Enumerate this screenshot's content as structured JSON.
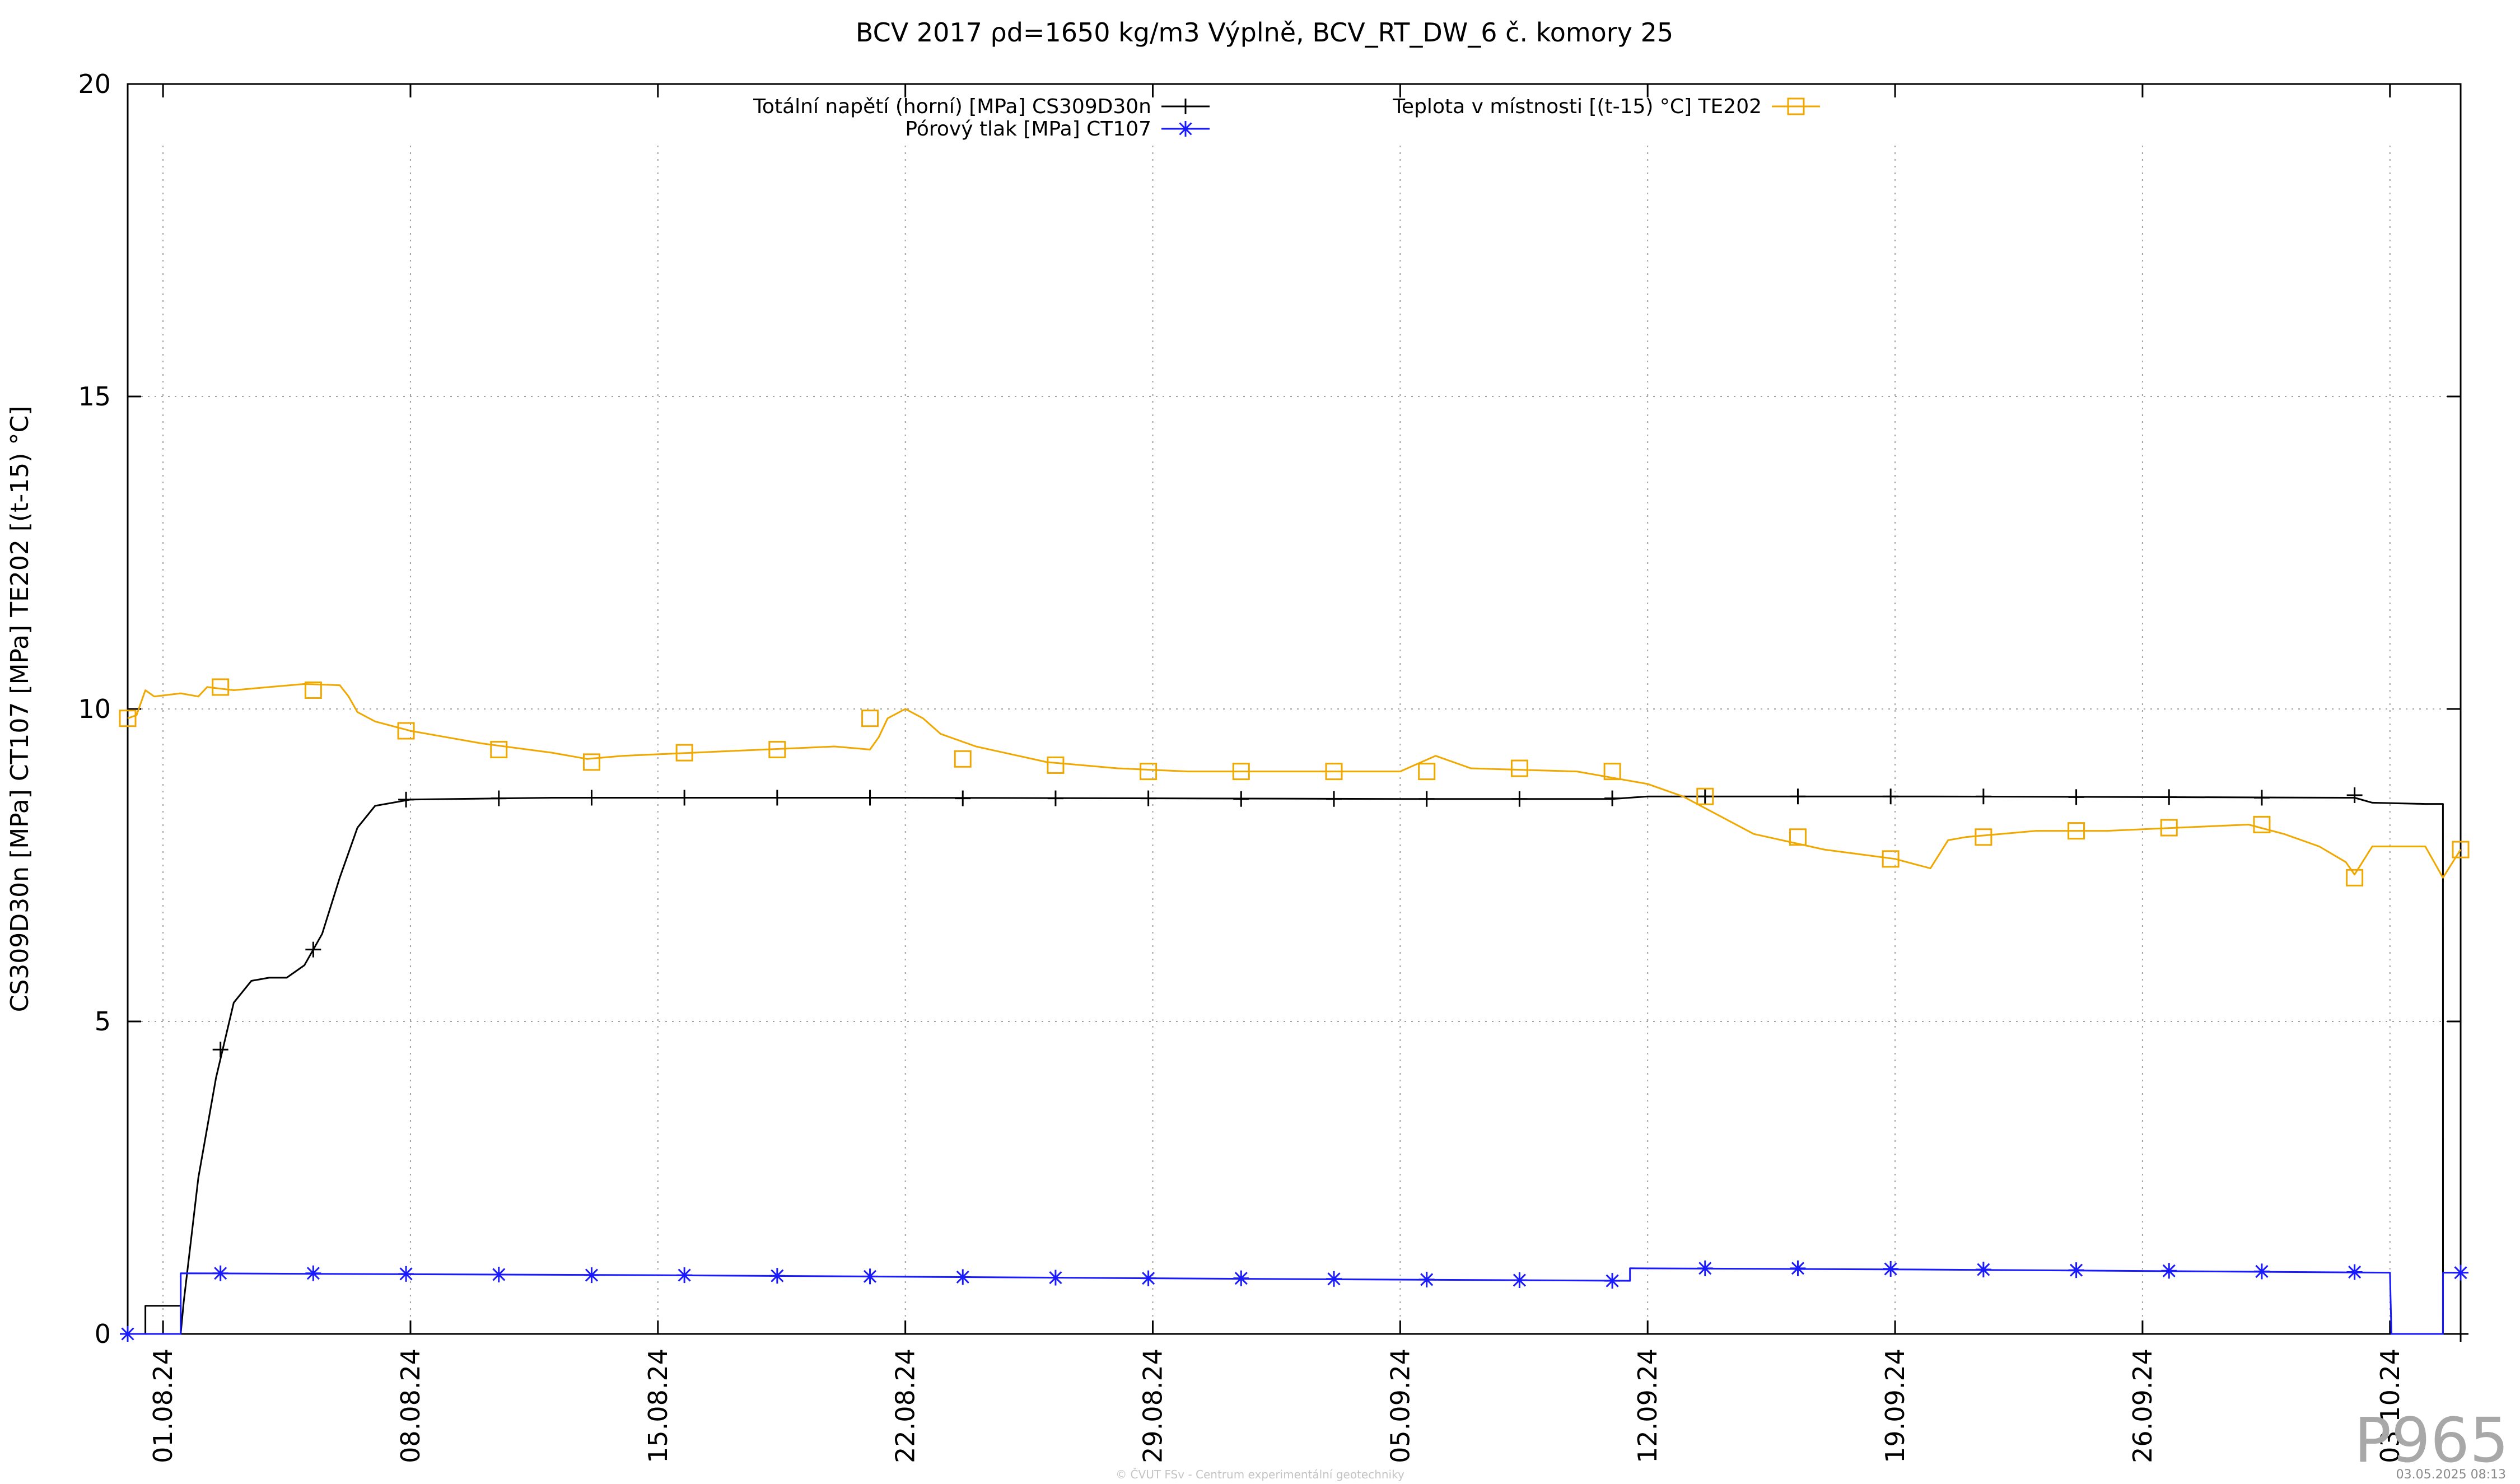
{
  "chart_data": {
    "type": "line",
    "title": "BCV 2017 ρd=1650 kg/m3 Výplně, BCV_RT_DW_6 č. komory 25",
    "xlabel": "",
    "ylabel": "CS309D30n [MPa] CT107 [MPa] TE202 [(t-15) °C]",
    "xlim": [
      "2024-07-31",
      "2024-10-05"
    ],
    "ylim": [
      0,
      20
    ],
    "yticks": [
      0,
      5,
      10,
      15,
      20
    ],
    "xticks": [
      {
        "date": "2024-08-01",
        "label": "01.08.24"
      },
      {
        "date": "2024-08-08",
        "label": "08.08.24"
      },
      {
        "date": "2024-08-15",
        "label": "15.08.24"
      },
      {
        "date": "2024-08-22",
        "label": "22.08.24"
      },
      {
        "date": "2024-08-29",
        "label": "29.08.24"
      },
      {
        "date": "2024-09-05",
        "label": "05.09.24"
      },
      {
        "date": "2024-09-12",
        "label": "12.09.24"
      },
      {
        "date": "2024-09-19",
        "label": "19.09.24"
      },
      {
        "date": "2024-09-26",
        "label": "26.09.24"
      },
      {
        "date": "2024-10-03",
        "label": "03.10.24"
      }
    ],
    "grid": true,
    "series": [
      {
        "name": "Totální napětí (horní) [MPa] CS309D30n",
        "color": "#000000",
        "marker": "plus",
        "legend_pos": "top-center-left",
        "points": [
          [
            "2024-07-31 00:00",
            0
          ],
          [
            "2024-07-31 12:00",
            0
          ],
          [
            "2024-07-31 12:01",
            0.45
          ],
          [
            "2024-08-01 12:00",
            0.45
          ],
          [
            "2024-08-01 12:01",
            0
          ],
          [
            "2024-08-01 14:00",
            0.5
          ],
          [
            "2024-08-02 00:00",
            2.5
          ],
          [
            "2024-08-02 12:00",
            4.1
          ],
          [
            "2024-08-03 00:00",
            5.3
          ],
          [
            "2024-08-03 12:00",
            5.65
          ],
          [
            "2024-08-04 00:00",
            5.7
          ],
          [
            "2024-08-04 12:00",
            5.7
          ],
          [
            "2024-08-05 00:00",
            5.9
          ],
          [
            "2024-08-05 12:00",
            6.4
          ],
          [
            "2024-08-06 00:00",
            7.3
          ],
          [
            "2024-08-06 12:00",
            8.1
          ],
          [
            "2024-08-07 00:00",
            8.45
          ],
          [
            "2024-08-08 00:00",
            8.55
          ],
          [
            "2024-08-12 00:00",
            8.58
          ],
          [
            "2024-08-22 00:00",
            8.58
          ],
          [
            "2024-09-05 00:00",
            8.56
          ],
          [
            "2024-09-11 00:00",
            8.56
          ],
          [
            "2024-09-12 00:00",
            8.6
          ],
          [
            "2024-09-20 00:00",
            8.6
          ],
          [
            "2024-10-02 00:00",
            8.58
          ],
          [
            "2024-10-02 12:00",
            8.5
          ],
          [
            "2024-10-04 00:00",
            8.48
          ],
          [
            "2024-10-04 12:00",
            8.48
          ],
          [
            "2024-10-04 12:01",
            0
          ],
          [
            "2024-10-05 00:00",
            0
          ]
        ],
        "marker_points": [
          [
            "2024-07-31 00:00",
            0
          ],
          [
            "2024-08-02 15:00",
            4.55
          ],
          [
            "2024-08-05 06:00",
            6.15
          ],
          [
            "2024-08-07 21:00",
            8.55
          ],
          [
            "2024-08-10 12:00",
            8.57
          ],
          [
            "2024-08-13 03:00",
            8.58
          ],
          [
            "2024-08-15 18:00",
            8.58
          ],
          [
            "2024-08-18 09:00",
            8.58
          ],
          [
            "2024-08-21 00:00",
            8.58
          ],
          [
            "2024-08-23 15:00",
            8.57
          ],
          [
            "2024-08-26 06:00",
            8.57
          ],
          [
            "2024-08-28 21:00",
            8.57
          ],
          [
            "2024-08-31 12:00",
            8.56
          ],
          [
            "2024-09-03 03:00",
            8.56
          ],
          [
            "2024-09-05 18:00",
            8.56
          ],
          [
            "2024-09-08 09:00",
            8.56
          ],
          [
            "2024-09-11 00:00",
            8.57
          ],
          [
            "2024-09-13 15:00",
            8.6
          ],
          [
            "2024-09-16 06:00",
            8.6
          ],
          [
            "2024-09-18 21:00",
            8.6
          ],
          [
            "2024-09-21 12:00",
            8.6
          ],
          [
            "2024-09-24 03:00",
            8.59
          ],
          [
            "2024-09-26 18:00",
            8.59
          ],
          [
            "2024-09-29 09:00",
            8.58
          ],
          [
            "2024-10-02 00:00",
            8.62
          ],
          [
            "2024-10-05 00:00",
            0
          ]
        ]
      },
      {
        "name": "Pórový tlak [MPa] CT107",
        "color": "#1a1aff",
        "marker": "star",
        "legend_pos": "top-center-left",
        "points": [
          [
            "2024-07-31 00:00",
            0
          ],
          [
            "2024-08-01 12:00",
            0
          ],
          [
            "2024-08-01 12:01",
            0.97
          ],
          [
            "2024-08-15 00:00",
            0.94
          ],
          [
            "2024-09-01 00:00",
            0.88
          ],
          [
            "2024-09-11 12:00",
            0.85
          ],
          [
            "2024-09-11 12:01",
            1.05
          ],
          [
            "2024-09-20 00:00",
            1.03
          ],
          [
            "2024-10-03 00:00",
            0.98
          ],
          [
            "2024-10-03 01:00",
            0
          ],
          [
            "2024-10-04 12:00",
            0
          ],
          [
            "2024-10-04 12:01",
            0.98
          ],
          [
            "2024-10-05 00:00",
            0.98
          ]
        ],
        "marker_points": [
          [
            "2024-07-31 00:00",
            0
          ],
          [
            "2024-08-02 15:00",
            0.97
          ],
          [
            "2024-08-05 06:00",
            0.97
          ],
          [
            "2024-08-07 21:00",
            0.96
          ],
          [
            "2024-08-10 12:00",
            0.95
          ],
          [
            "2024-08-13 03:00",
            0.94
          ],
          [
            "2024-08-15 18:00",
            0.94
          ],
          [
            "2024-08-18 09:00",
            0.93
          ],
          [
            "2024-08-21 00:00",
            0.92
          ],
          [
            "2024-08-23 15:00",
            0.91
          ],
          [
            "2024-08-26 06:00",
            0.9
          ],
          [
            "2024-08-28 21:00",
            0.89
          ],
          [
            "2024-08-31 12:00",
            0.89
          ],
          [
            "2024-09-03 03:00",
            0.88
          ],
          [
            "2024-09-05 18:00",
            0.87
          ],
          [
            "2024-09-08 09:00",
            0.86
          ],
          [
            "2024-09-11 00:00",
            0.85
          ],
          [
            "2024-09-13 15:00",
            1.05
          ],
          [
            "2024-09-16 06:00",
            1.05
          ],
          [
            "2024-09-18 21:00",
            1.04
          ],
          [
            "2024-09-21 12:00",
            1.03
          ],
          [
            "2024-09-24 03:00",
            1.02
          ],
          [
            "2024-09-26 18:00",
            1.01
          ],
          [
            "2024-09-29 09:00",
            1.0
          ],
          [
            "2024-10-02 00:00",
            0.99
          ],
          [
            "2024-10-05 00:00",
            0.98
          ]
        ]
      },
      {
        "name": "Teplota v místnosti [(t-15) °C] TE202",
        "color": "#f0a800",
        "marker": "square",
        "legend_pos": "top-center-right",
        "points": [
          [
            "2024-07-31 00:00",
            9.85
          ],
          [
            "2024-07-31 06:00",
            9.9
          ],
          [
            "2024-07-31 12:00",
            10.3
          ],
          [
            "2024-07-31 18:00",
            10.2
          ],
          [
            "2024-08-01 12:00",
            10.25
          ],
          [
            "2024-08-02 00:00",
            10.2
          ],
          [
            "2024-08-02 06:00",
            10.35
          ],
          [
            "2024-08-03 00:00",
            10.3
          ],
          [
            "2024-08-04 00:00",
            10.35
          ],
          [
            "2024-08-05 00:00",
            10.4
          ],
          [
            "2024-08-06 00:00",
            10.38
          ],
          [
            "2024-08-06 06:00",
            10.2
          ],
          [
            "2024-08-06 12:00",
            9.95
          ],
          [
            "2024-08-07 00:00",
            9.8
          ],
          [
            "2024-08-08 00:00",
            9.65
          ],
          [
            "2024-08-10 00:00",
            9.45
          ],
          [
            "2024-08-12 00:00",
            9.3
          ],
          [
            "2024-08-13 00:00",
            9.2
          ],
          [
            "2024-08-14 00:00",
            9.25
          ],
          [
            "2024-08-16 00:00",
            9.3
          ],
          [
            "2024-08-18 00:00",
            9.35
          ],
          [
            "2024-08-20 00:00",
            9.4
          ],
          [
            "2024-08-21 00:00",
            9.35
          ],
          [
            "2024-08-21 06:00",
            9.55
          ],
          [
            "2024-08-21 12:00",
            9.85
          ],
          [
            "2024-08-22 00:00",
            10.0
          ],
          [
            "2024-08-22 12:00",
            9.85
          ],
          [
            "2024-08-23 00:00",
            9.6
          ],
          [
            "2024-08-24 00:00",
            9.4
          ],
          [
            "2024-08-26 00:00",
            9.15
          ],
          [
            "2024-08-28 00:00",
            9.05
          ],
          [
            "2024-08-30 00:00",
            9.0
          ],
          [
            "2024-09-01 00:00",
            9.0
          ],
          [
            "2024-09-04 00:00",
            9.0
          ],
          [
            "2024-09-05 00:00",
            9.0
          ],
          [
            "2024-09-06 00:00",
            9.25
          ],
          [
            "2024-09-07 00:00",
            9.05
          ],
          [
            "2024-09-10 00:00",
            9.0
          ],
          [
            "2024-09-11 00:00",
            8.9
          ],
          [
            "2024-09-12 00:00",
            8.8
          ],
          [
            "2024-09-13 00:00",
            8.6
          ],
          [
            "2024-09-14 00:00",
            8.3
          ],
          [
            "2024-09-15 00:00",
            8.0
          ],
          [
            "2024-09-17 00:00",
            7.75
          ],
          [
            "2024-09-19 00:00",
            7.6
          ],
          [
            "2024-09-20 00:00",
            7.45
          ],
          [
            "2024-09-20 12:00",
            7.9
          ],
          [
            "2024-09-21 00:00",
            7.95
          ],
          [
            "2024-09-23 00:00",
            8.05
          ],
          [
            "2024-09-25 00:00",
            8.05
          ],
          [
            "2024-09-27 00:00",
            8.1
          ],
          [
            "2024-09-29 00:00",
            8.15
          ],
          [
            "2024-09-30 00:00",
            8.0
          ],
          [
            "2024-10-01 00:00",
            7.8
          ],
          [
            "2024-10-01 18:00",
            7.55
          ],
          [
            "2024-10-02 00:00",
            7.35
          ],
          [
            "2024-10-02 12:00",
            7.8
          ],
          [
            "2024-10-04 00:00",
            7.8
          ],
          [
            "2024-10-04 12:00",
            7.3
          ],
          [
            "2024-10-05 00:00",
            7.75
          ]
        ],
        "marker_points": [
          [
            "2024-07-31 00:00",
            9.85
          ],
          [
            "2024-08-02 15:00",
            10.35
          ],
          [
            "2024-08-05 06:00",
            10.3
          ],
          [
            "2024-08-07 21:00",
            9.65
          ],
          [
            "2024-08-10 12:00",
            9.35
          ],
          [
            "2024-08-13 03:00",
            9.15
          ],
          [
            "2024-08-15 18:00",
            9.3
          ],
          [
            "2024-08-18 09:00",
            9.35
          ],
          [
            "2024-08-21 00:00",
            9.85
          ],
          [
            "2024-08-23 15:00",
            9.2
          ],
          [
            "2024-08-26 06:00",
            9.1
          ],
          [
            "2024-08-28 21:00",
            9.0
          ],
          [
            "2024-08-31 12:00",
            9.0
          ],
          [
            "2024-09-03 03:00",
            9.0
          ],
          [
            "2024-09-05 18:00",
            9.0
          ],
          [
            "2024-09-08 09:00",
            9.05
          ],
          [
            "2024-09-11 00:00",
            9.0
          ],
          [
            "2024-09-13 15:00",
            8.6
          ],
          [
            "2024-09-16 06:00",
            7.95
          ],
          [
            "2024-09-18 21:00",
            7.6
          ],
          [
            "2024-09-21 12:00",
            7.95
          ],
          [
            "2024-09-24 03:00",
            8.05
          ],
          [
            "2024-09-26 18:00",
            8.1
          ],
          [
            "2024-09-29 09:00",
            8.15
          ],
          [
            "2024-10-02 00:00",
            7.3
          ],
          [
            "2024-10-05 00:00",
            7.75
          ]
        ]
      }
    ]
  },
  "page": {
    "watermark": "P965",
    "credit": "© ČVUT FSv - Centrum experimentální geotechniky",
    "date_stamp": "03.05.2025 08:13"
  }
}
